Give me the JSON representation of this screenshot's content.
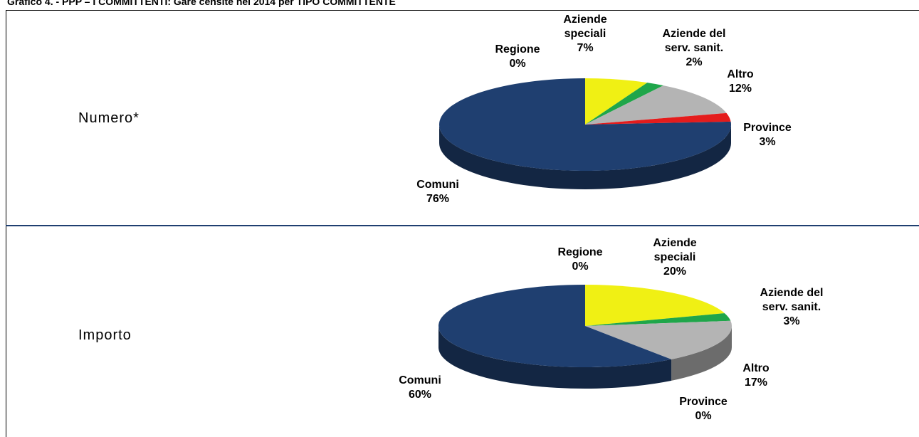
{
  "caption": "Grafico 4. - PPP – I COMMITTENTI: Gare censite nel 2014 per TIPO COMMITTENTE",
  "chart_data": [
    {
      "type": "pie",
      "title": "Numero*",
      "categories": [
        "Aziende speciali",
        "Aziende del serv. sanit.",
        "Altro",
        "Province",
        "Comuni",
        "Regione"
      ],
      "values": [
        7,
        2,
        12,
        3,
        76,
        0
      ],
      "value_labels": [
        "7%",
        "2%",
        "12%",
        "3%",
        "76%",
        "0%"
      ],
      "colors": [
        "#f0f014",
        "#1fa64a",
        "#b4b4b4",
        "#e41c1c",
        "#1f3f70",
        "#f39c12"
      ]
    },
    {
      "type": "pie",
      "title": "Importo",
      "categories": [
        "Aziende speciali",
        "Aziende del serv. sanit.",
        "Altro",
        "Province",
        "Comuni",
        "Regione"
      ],
      "values": [
        20,
        3,
        17,
        0,
        60,
        0
      ],
      "value_labels": [
        "20%",
        "3%",
        "17%",
        "0%",
        "60%",
        "0%"
      ],
      "colors": [
        "#f0f014",
        "#1fa64a",
        "#b4b4b4",
        "#e41c1c",
        "#1f3f70",
        "#f39c12"
      ]
    }
  ]
}
